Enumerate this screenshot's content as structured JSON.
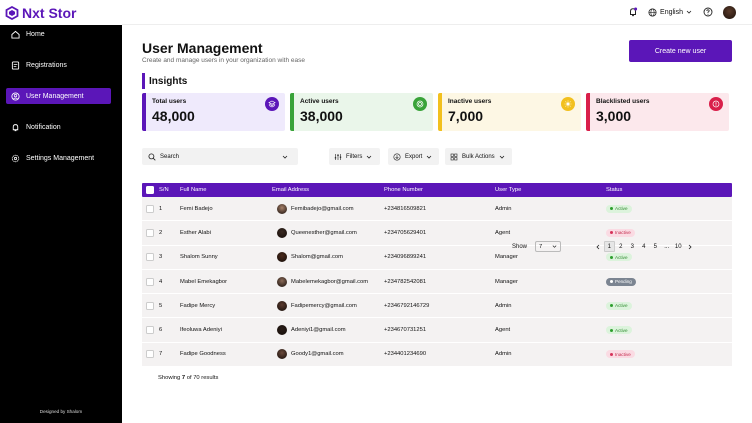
{
  "app": {
    "brand": "Nxt Stor"
  },
  "sidebar": {
    "items": [
      {
        "label": "Home",
        "icon": "home-icon",
        "active": false
      },
      {
        "label": "Registrations",
        "icon": "registrations-icon",
        "active": false
      },
      {
        "label": "User Management",
        "icon": "user-circle-icon",
        "active": true
      },
      {
        "label": "Notification",
        "icon": "bell-icon",
        "active": false
      },
      {
        "label": "Settings Management",
        "icon": "gear-icon",
        "active": false
      }
    ],
    "footer": "Designed by Shalom"
  },
  "topbar": {
    "language": "English"
  },
  "page": {
    "title": "User Management",
    "subtitle": "Create and  manage users in your organization with ease",
    "create_button": "Create new user",
    "insights_heading": "Insights"
  },
  "insights": [
    {
      "label": "Total users",
      "value": "48,000",
      "bg": "#efeafc",
      "border": "#5b16b8",
      "icon_bg": "#5b16b8"
    },
    {
      "label": "Active users",
      "value": "38,000",
      "bg": "#eaf6ea",
      "border": "#39a339",
      "icon_bg": "#39a339"
    },
    {
      "label": "Inactive users",
      "value": "7,000",
      "bg": "#fdf7e4",
      "border": "#f2c01e",
      "icon_bg": "#f2c01e"
    },
    {
      "label": "Blacklisted users",
      "value": "3,000",
      "bg": "#fce8ec",
      "border": "#d91f4a",
      "icon_bg": "#d91f4a"
    }
  ],
  "controls": {
    "search_placeholder": "Search",
    "filters": "Filters",
    "export": "Export",
    "bulk": "Bulk Actions"
  },
  "table": {
    "headers": [
      "S/N",
      "Full Name",
      "Email Address",
      "Phone Number",
      "User Type",
      "Status"
    ],
    "rows": [
      {
        "sn": "1",
        "name": "Femi Badejo",
        "email": "Femibadejo@gmail.com",
        "phone": "+2348165098​21",
        "type": "Admin",
        "status": "Active"
      },
      {
        "sn": "2",
        "name": "Esther Alabi",
        "email": "Queenesther@gmail.com",
        "phone": "+234705629401",
        "type": "Agent",
        "status": "Inactive"
      },
      {
        "sn": "3",
        "name": "Shalom Sunny",
        "email": "Shalom@gmail.com",
        "phone": "+234096899241",
        "type": "Manager",
        "status": "Active"
      },
      {
        "sn": "4",
        "name": "Mabel Emekagbor",
        "email": "Mabelemekagbor@gmail.com",
        "phone": "+234782542081",
        "type": "Manager",
        "status": "Pending"
      },
      {
        "sn": "5",
        "name": "Fadipe Mercy",
        "email": "Fadipemercy@gmail.com",
        "phone": "+2346792146729",
        "type": "Admin",
        "status": "Active"
      },
      {
        "sn": "6",
        "name": "Ifeoluwa Adeniyi",
        "email": "Adeniyi1@gmail.com",
        "phone": "+234670731251",
        "type": "Agent",
        "status": "Active"
      },
      {
        "sn": "7",
        "name": "Fadipe Goodness",
        "email": "Goody1@gmail.com",
        "phone": "+234401234690",
        "type": "Admin",
        "status": "Inactive"
      }
    ],
    "footer_prefix": "Showing ",
    "footer_shown": "7",
    "footer_mid": " of ",
    "footer_total": "70",
    "footer_suffix": " results"
  },
  "pagination": {
    "show_label": "Show",
    "show_value": "7",
    "pages": [
      "1",
      "2",
      "3",
      "4",
      "5",
      "...",
      "10"
    ],
    "current": "1"
  }
}
